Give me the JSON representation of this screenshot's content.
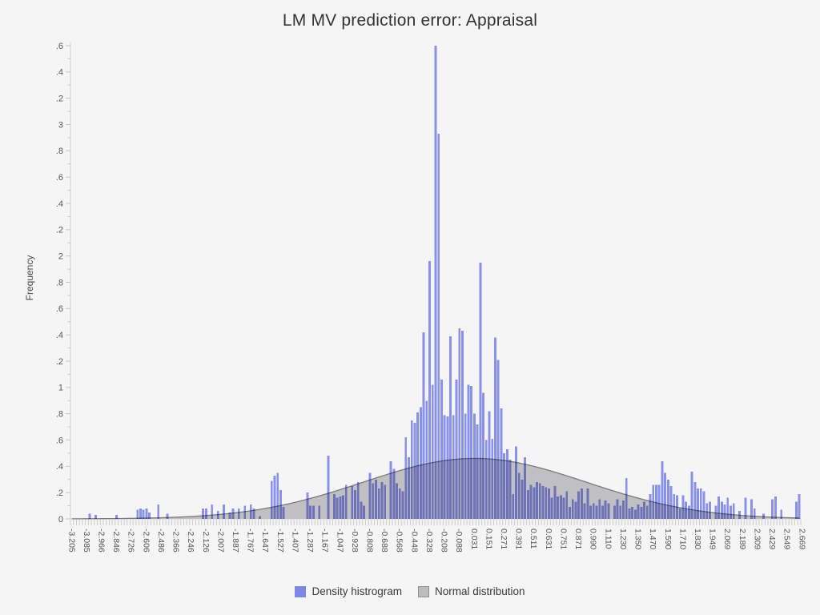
{
  "chart_data": {
    "type": "bar",
    "subtype": "histogram-with-normal-overlay",
    "title": "LM MV prediction error: Appraisal",
    "xlabel": "",
    "ylabel": "Frequency",
    "ylim": [
      0,
      3.6
    ],
    "grid": false,
    "legend_position": "bottom-center",
    "legend_labels": [
      "Density histrogram",
      "Normal distribution"
    ],
    "y_ticks": [
      "0",
      "0.2",
      "0.4",
      "0.6",
      "0.8",
      "1",
      "1.2",
      "1.4",
      "1.6",
      "1.8",
      "2",
      "2.2",
      "2.4",
      "2.6",
      "2.8",
      "3",
      "3.2",
      "3.4",
      "3.6"
    ],
    "x_tick_labels": [
      "-3.205",
      "-3.085",
      "-2.966",
      "-2.846",
      "-2.726",
      "-2.606",
      "-2.486",
      "-2.366",
      "-2.246",
      "-2.126",
      "-2.007",
      "-1.887",
      "-1.767",
      "-1.647",
      "-1.527",
      "-1.407",
      "-1.287",
      "-1.167",
      "-1.047",
      "-0.928",
      "-0.808",
      "-0.688",
      "-0.568",
      "-0.448",
      "-0.328",
      "-0.208",
      "-0.088",
      "0.031",
      "0.151",
      "0.271",
      "0.391",
      "0.511",
      "0.631",
      "0.751",
      "0.871",
      "0.990",
      "1.110",
      "1.230",
      "1.350",
      "1.470",
      "1.590",
      "1.710",
      "1.830",
      "1.949",
      "2.069",
      "2.189",
      "2.309",
      "2.429",
      "2.549",
      "2.669"
    ],
    "bin_start": -3.205,
    "bin_width": 0.024,
    "n_bins": 245,
    "labels_every_n_bins": 5,
    "heights": [
      0,
      0,
      0,
      0,
      0,
      0,
      0.04,
      0,
      0.03,
      0,
      0,
      0,
      0,
      0,
      0,
      0.03,
      0,
      0,
      0,
      0,
      0,
      0,
      0.07,
      0.08,
      0.07,
      0.08,
      0.05,
      0,
      0,
      0.11,
      0,
      0,
      0.04,
      0,
      0,
      0,
      0,
      0,
      0,
      0,
      0,
      0,
      0,
      0,
      0.08,
      0.08,
      0,
      0.11,
      0,
      0.06,
      0,
      0.11,
      0,
      0.05,
      0.08,
      0,
      0.08,
      0,
      0.1,
      0,
      0.11,
      0.08,
      0,
      0.02,
      0,
      0,
      0,
      0.29,
      0.33,
      0.35,
      0.22,
      0.09,
      0,
      0,
      0,
      0,
      0,
      0,
      0,
      0.2,
      0.1,
      0.1,
      0,
      0.1,
      0,
      0,
      0.48,
      0,
      0.19,
      0.16,
      0.17,
      0.18,
      0.26,
      0,
      0.25,
      0.22,
      0.28,
      0.13,
      0.1,
      0,
      0.35,
      0.27,
      0.3,
      0.23,
      0.28,
      0.26,
      0,
      0.44,
      0.38,
      0.27,
      0.23,
      0.21,
      0.62,
      0.47,
      0.75,
      0.73,
      0.81,
      0.85,
      1.42,
      0.9,
      1.96,
      1.02,
      3.6,
      2.93,
      1.06,
      0.79,
      0.78,
      1.39,
      0.79,
      1.06,
      1.45,
      1.43,
      0.8,
      1.02,
      1.01,
      0.8,
      0.72,
      1.95,
      0.96,
      0.6,
      0.82,
      0.61,
      1.38,
      1.21,
      0.84,
      0.5,
      0.53,
      0.45,
      0.19,
      0.55,
      0.35,
      0.3,
      0.47,
      0.22,
      0.26,
      0.24,
      0.28,
      0.27,
      0.25,
      0.24,
      0.23,
      0.16,
      0.25,
      0.17,
      0.18,
      0.16,
      0.21,
      0.09,
      0.15,
      0.13,
      0.21,
      0.23,
      0.12,
      0.23,
      0.1,
      0.12,
      0.1,
      0.15,
      0.1,
      0.14,
      0.12,
      0,
      0.1,
      0.15,
      0.1,
      0.14,
      0.31,
      0.08,
      0.09,
      0.07,
      0.11,
      0.09,
      0.13,
      0.1,
      0.19,
      0.26,
      0.26,
      0.26,
      0.44,
      0.35,
      0.3,
      0.25,
      0.19,
      0.18,
      0.08,
      0.18,
      0.13,
      0.1,
      0.36,
      0.28,
      0.23,
      0.23,
      0.21,
      0.12,
      0.13,
      0,
      0.1,
      0.17,
      0.13,
      0.11,
      0.16,
      0.1,
      0.12,
      0,
      0.06,
      0,
      0.16,
      0,
      0.15,
      0.08,
      0,
      0,
      0.04,
      0,
      0,
      0.15,
      0.17,
      0,
      0.07,
      0,
      0,
      0,
      0,
      0.13,
      0.19
    ],
    "normal_overlay": {
      "mean": 0.05,
      "sd": 0.9,
      "peak": 0.46
    },
    "colors": {
      "background": "#f5f5f6",
      "bar_fill": "#7b86ee",
      "bar_legend_swatch": "#7c87e8",
      "normal_fill": "#bdbdbf",
      "normal_line": "#7a7a7d",
      "normal_swatch_border": "#909092",
      "axis_line": "#cfcfd2",
      "tick_mark": "#c6c6c9",
      "tick_text": "#565658",
      "title_text": "#333336"
    }
  }
}
